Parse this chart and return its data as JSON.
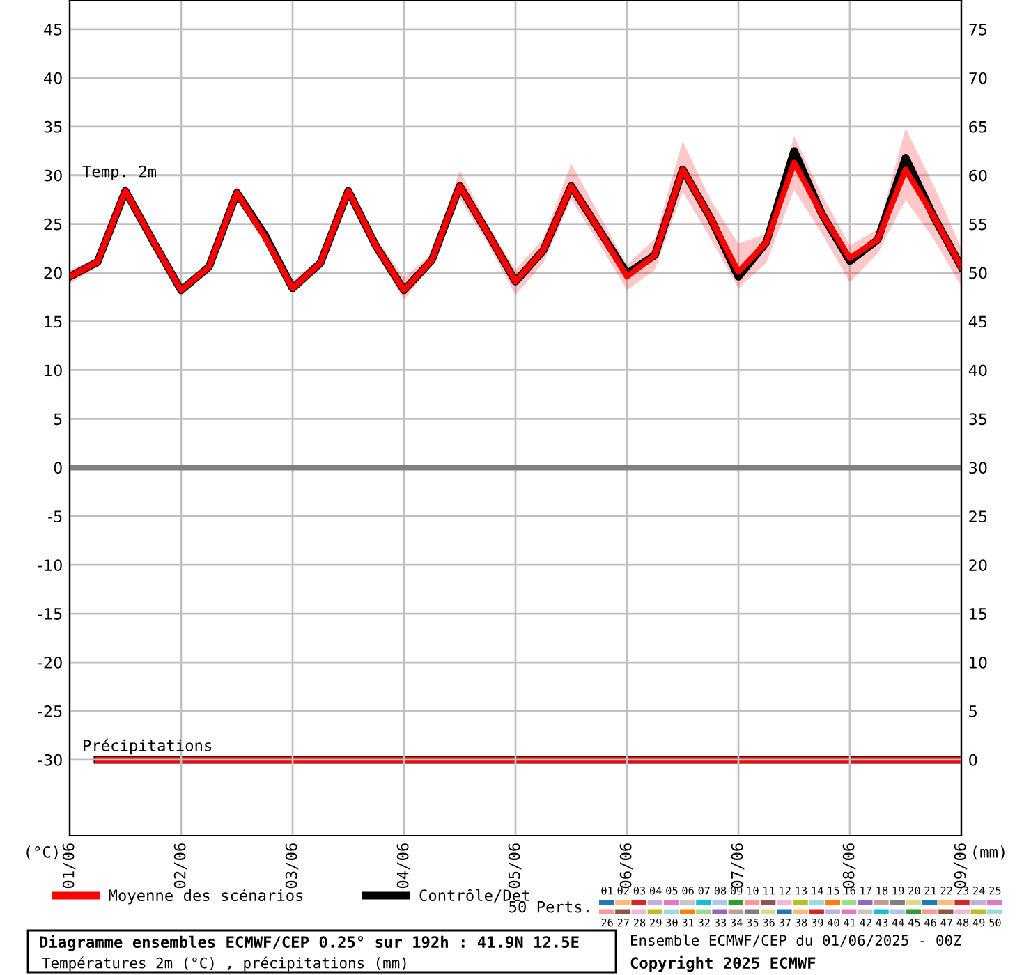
{
  "chart_data": {
    "type": "line",
    "title": "Diagramme ensembles ECMWF/CEP 0.25° sur 192h : 41.9N 12.5E",
    "subtitle": "Températures 2m (°C) , précipitations (mm)",
    "ylabel": "(°C)",
    "y2label": "(mm)",
    "x": [
      "2025-06-01T00:00",
      "2025-06-01T06:00",
      "2025-06-01T12:00",
      "2025-06-01T18:00",
      "2025-06-02T00:00",
      "2025-06-02T06:00",
      "2025-06-02T12:00",
      "2025-06-02T18:00",
      "2025-06-03T00:00",
      "2025-06-03T06:00",
      "2025-06-03T12:00",
      "2025-06-03T18:00",
      "2025-06-04T00:00",
      "2025-06-04T06:00",
      "2025-06-04T12:00",
      "2025-06-04T18:00",
      "2025-06-05T00:00",
      "2025-06-05T06:00",
      "2025-06-05T12:00",
      "2025-06-05T18:00",
      "2025-06-06T00:00",
      "2025-06-06T06:00",
      "2025-06-06T12:00",
      "2025-06-06T18:00",
      "2025-06-07T00:00",
      "2025-06-07T06:00",
      "2025-06-07T12:00",
      "2025-06-07T18:00",
      "2025-06-08T00:00",
      "2025-06-08T06:00",
      "2025-06-08T12:00",
      "2025-06-08T18:00",
      "2025-06-09T00:00"
    ],
    "series": [
      {
        "name": "Contrôle/Det",
        "color": "#000000",
        "values": [
          19.6,
          21.1,
          28.4,
          23.2,
          18.2,
          20.6,
          28.2,
          23.9,
          18.4,
          21.0,
          28.4,
          22.7,
          18.2,
          21.3,
          28.9,
          24.1,
          19.1,
          22.3,
          28.9,
          24.4,
          19.9,
          21.8,
          30.6,
          25.6,
          19.6,
          23.1,
          32.5,
          26.0,
          21.2,
          23.4,
          31.8,
          25.8,
          20.6
        ]
      },
      {
        "name": "Moyenne des scénarios",
        "color": "#ff0000",
        "values": [
          19.6,
          21.1,
          28.4,
          23.2,
          18.2,
          20.6,
          28.2,
          23.7,
          18.4,
          21.0,
          28.4,
          22.7,
          18.2,
          21.3,
          28.9,
          24.1,
          19.1,
          22.3,
          28.9,
          24.4,
          19.6,
          21.8,
          30.6,
          25.6,
          20.1,
          23.1,
          31.3,
          26.0,
          21.5,
          23.4,
          30.6,
          25.8,
          20.6
        ],
        "lower": [
          18.8,
          20.7,
          27.6,
          22.5,
          17.6,
          20.2,
          27.5,
          23.0,
          18.0,
          20.6,
          28.0,
          22.0,
          17.2,
          20.8,
          27.6,
          23.0,
          17.7,
          21.0,
          27.5,
          23.0,
          18.2,
          20.3,
          28.3,
          23.5,
          18.4,
          21.0,
          28.5,
          24.0,
          19.0,
          22.0,
          27.5,
          23.5,
          18.6
        ],
        "upper": [
          20.3,
          21.5,
          29.0,
          24.0,
          18.6,
          21.0,
          28.9,
          24.5,
          19.2,
          21.5,
          28.9,
          23.5,
          19.5,
          22.0,
          30.5,
          25.0,
          20.3,
          23.5,
          31.2,
          26.0,
          20.8,
          23.5,
          33.5,
          27.5,
          23.0,
          24.0,
          34.0,
          28.0,
          22.8,
          24.5,
          34.8,
          29.0,
          22.5
        ]
      },
      {
        "color": "#000000",
        "axis": "y2",
        "x": [
          "2025-06-01T06:00",
          "2025-06-01T12:00",
          "2025-06-01T18:00",
          "2025-06-02T00:00",
          "2025-06-02T06:00",
          "2025-06-02T12:00",
          "2025-06-02T18:00",
          "2025-06-03T00:00",
          "2025-06-03T06:00",
          "2025-06-03T12:00",
          "2025-06-03T18:00",
          "2025-06-04T00:00",
          "2025-06-04T06:00",
          "2025-06-04T12:00",
          "2025-06-04T18:00",
          "2025-06-05T00:00",
          "2025-06-05T06:00",
          "2025-06-05T12:00",
          "2025-06-05T18:00",
          "2025-06-06T00:00",
          "2025-06-06T06:00",
          "2025-06-06T12:00",
          "2025-06-06T18:00",
          "2025-06-07T00:00",
          "2025-06-07T06:00",
          "2025-06-07T12:00",
          "2025-06-07T18:00",
          "2025-06-08T00:00",
          "2025-06-08T06:00",
          "2025-06-08T12:00",
          "2025-06-08T18:00",
          "2025-06-09T00:00"
        ],
        "values": [
          0,
          0,
          0,
          0,
          0,
          0,
          0,
          0,
          0,
          0,
          0,
          0,
          0,
          0,
          0,
          0,
          0,
          0,
          0,
          0,
          0,
          0,
          0,
          0,
          0,
          0,
          0,
          0,
          0,
          0,
          0,
          0
        ]
      },
      {
        "color": "#ff0000",
        "axis": "y2",
        "x": [
          "2025-06-01T06:00",
          "2025-06-01T12:00",
          "2025-06-01T18:00",
          "2025-06-02T00:00",
          "2025-06-02T06:00",
          "2025-06-02T12:00",
          "2025-06-02T18:00",
          "2025-06-03T00:00",
          "2025-06-03T06:00",
          "2025-06-03T12:00",
          "2025-06-03T18:00",
          "2025-06-04T00:00",
          "2025-06-04T06:00",
          "2025-06-04T12:00",
          "2025-06-04T18:00",
          "2025-06-05T00:00",
          "2025-06-05T06:00",
          "2025-06-05T12:00",
          "2025-06-05T18:00",
          "2025-06-06T00:00",
          "2025-06-06T06:00",
          "2025-06-06T12:00",
          "2025-06-06T18:00",
          "2025-06-07T00:00",
          "2025-06-07T06:00",
          "2025-06-07T12:00",
          "2025-06-07T18:00",
          "2025-06-08T00:00",
          "2025-06-08T06:00",
          "2025-06-08T12:00",
          "2025-06-08T18:00",
          "2025-06-09T00:00"
        ],
        "values": [
          0,
          0,
          0,
          0,
          0,
          0,
          0,
          0,
          0,
          0,
          0,
          0,
          0,
          0,
          0,
          0,
          0,
          0,
          0,
          0,
          0,
          0,
          0,
          0,
          0,
          0,
          0,
          0,
          0,
          0,
          0,
          0
        ]
      }
    ],
    "xlim": [
      "2025-06-01",
      "2025-06-09"
    ],
    "xticks": [
      {
        "value": "2025-06-01",
        "label": "01/06"
      },
      {
        "value": "2025-06-02",
        "label": "02/06"
      },
      {
        "value": "2025-06-03",
        "label": "03/06"
      },
      {
        "value": "2025-06-04",
        "label": "04/06"
      },
      {
        "value": "2025-06-05",
        "label": "05/06"
      },
      {
        "value": "2025-06-06",
        "label": "06/06"
      },
      {
        "value": "2025-06-07",
        "label": "07/06"
      },
      {
        "value": "2025-06-08",
        "label": "08/06"
      },
      {
        "value": "2025-06-09",
        "label": "09/06"
      }
    ],
    "ylim": [
      -37.8,
      48
    ],
    "yticks": [
      -30,
      -25,
      -20,
      -15,
      -10,
      -5,
      0,
      5,
      10,
      15,
      20,
      25,
      30,
      35,
      40,
      45
    ],
    "y2lim": [
      -7.8,
      78
    ],
    "y2ticks": [
      0,
      5,
      10,
      15,
      20,
      25,
      30,
      35,
      40,
      45,
      50,
      55,
      60,
      65,
      70,
      75
    ],
    "ref_lines": [
      {
        "axis": "y",
        "value": 0,
        "color": "#808080"
      }
    ],
    "grid": true,
    "legend": "bottom",
    "annotations": [
      "Temp. 2m",
      "Précipitations",
      "50 Perts.",
      "01 02 03 04 05 06 07 08 09 10 11 12 13 14 15 16 17 18 19 20 21 22 23 24 25",
      "26 27 28 29 30 31 32 33 34 35 36 37 38 39 40 41 42 43 44 45 46 47 48 49 50",
      "Ensemble ECMWF/CEP du 01/06/2025 - 00Z",
      "Copyright 2025 ECMWF"
    ]
  }
}
